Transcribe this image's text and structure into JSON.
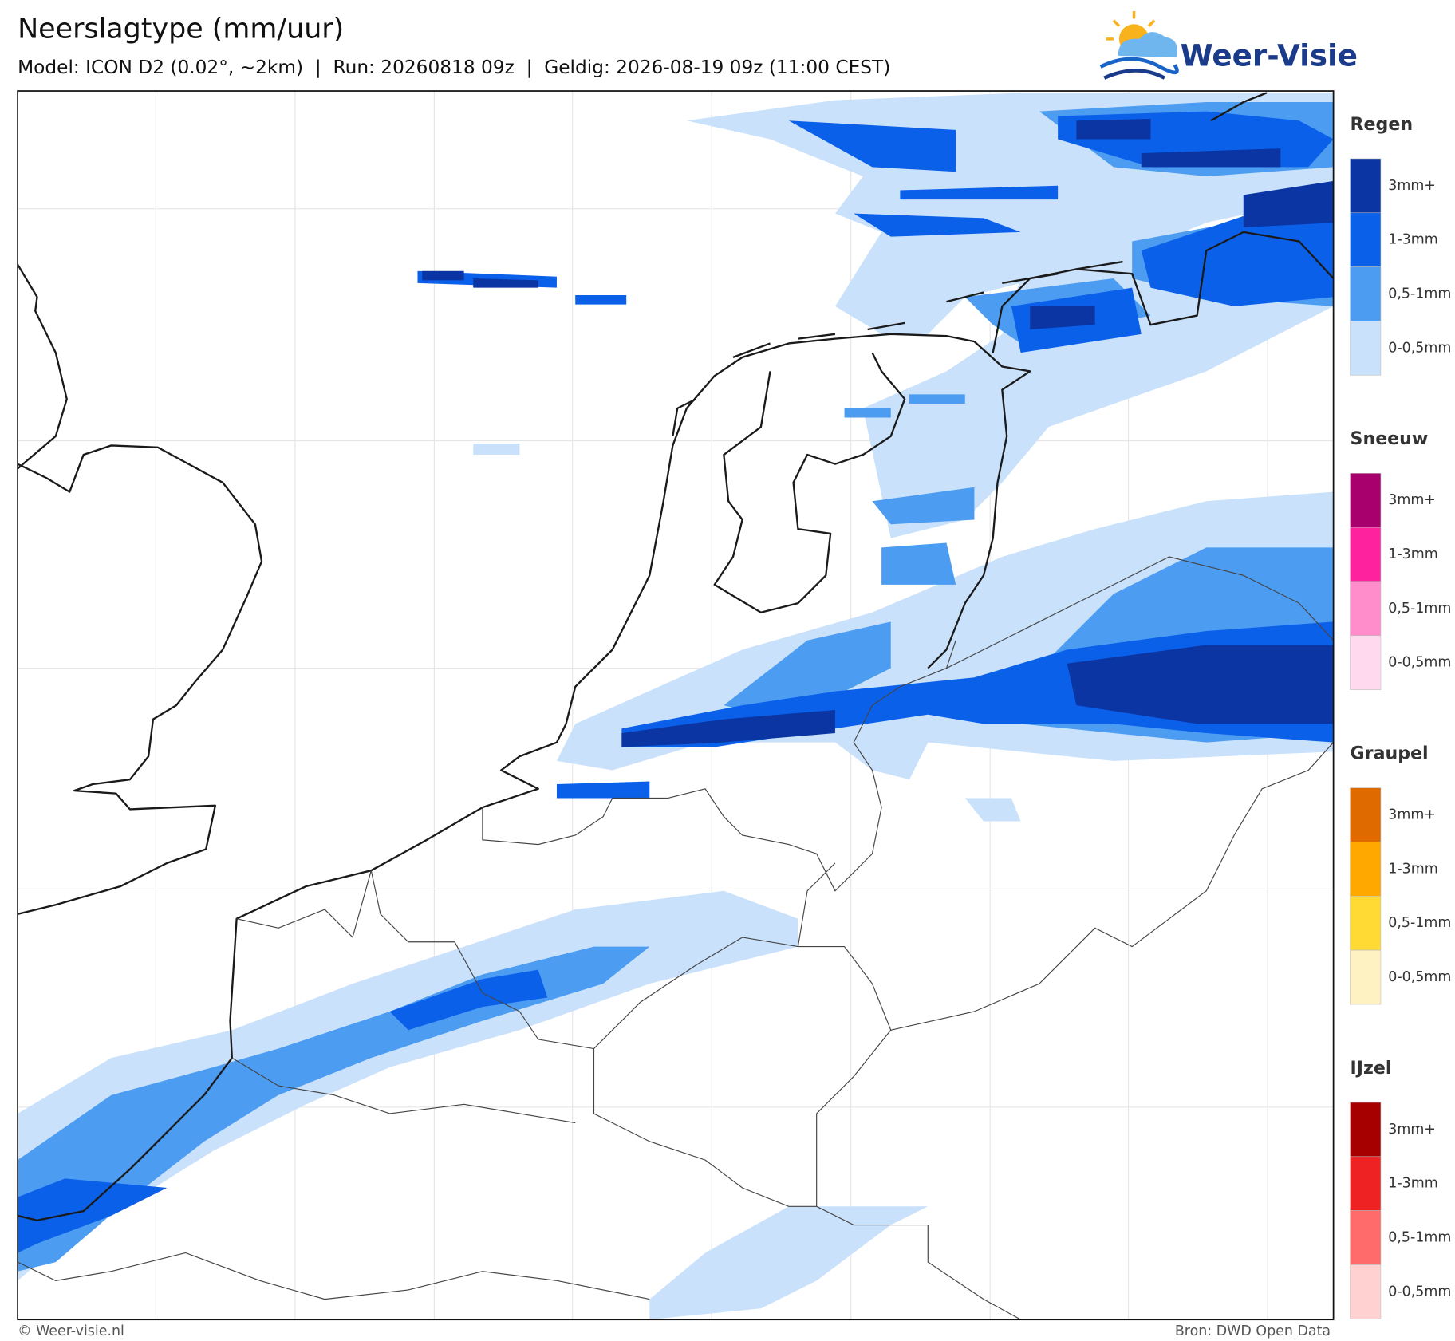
{
  "header": {
    "title": "Neerslagtype (mm/uur)",
    "subtitle": "Model: ICON D2 (0.02°, ~2km)  |  Run: 20260818 09z  |  Geldig: 2026-08-19 09z (11:00 CEST)"
  },
  "logo": {
    "text": "Weer-Visie"
  },
  "legend": [
    {
      "title": "Regen",
      "items": [
        {
          "label": "3mm+",
          "color": "#0a35a3"
        },
        {
          "label": "1-3mm",
          "color": "#0b60ea"
        },
        {
          "label": "0,5-1mm",
          "color": "#4c9cf2"
        },
        {
          "label": "0-0,5mm",
          "color": "#c9e1fb"
        }
      ]
    },
    {
      "title": "Sneeuw",
      "items": [
        {
          "label": "3mm+",
          "color": "#a8006c"
        },
        {
          "label": "1-3mm",
          "color": "#ff229f"
        },
        {
          "label": "0,5-1mm",
          "color": "#ff8ccb"
        },
        {
          "label": "0-0,5mm",
          "color": "#ffd9ee"
        }
      ]
    },
    {
      "title": "Graupel",
      "items": [
        {
          "label": "3mm+",
          "color": "#df6a00"
        },
        {
          "label": "1-3mm",
          "color": "#ffa800"
        },
        {
          "label": "0,5-1mm",
          "color": "#ffd934"
        },
        {
          "label": "0-0,5mm",
          "color": "#fff2c2"
        }
      ]
    },
    {
      "title": "IJzel",
      "items": [
        {
          "label": "3mm+",
          "color": "#a60000"
        },
        {
          "label": "1-3mm",
          "color": "#ee2222"
        },
        {
          "label": "0,5-1mm",
          "color": "#ff6a6a"
        },
        {
          "label": "0-0,5mm",
          "color": "#ffd1d1"
        }
      ]
    }
  ],
  "footer": {
    "left": "© Weer-visie.nl",
    "right": "Bron: DWD Open Data"
  }
}
